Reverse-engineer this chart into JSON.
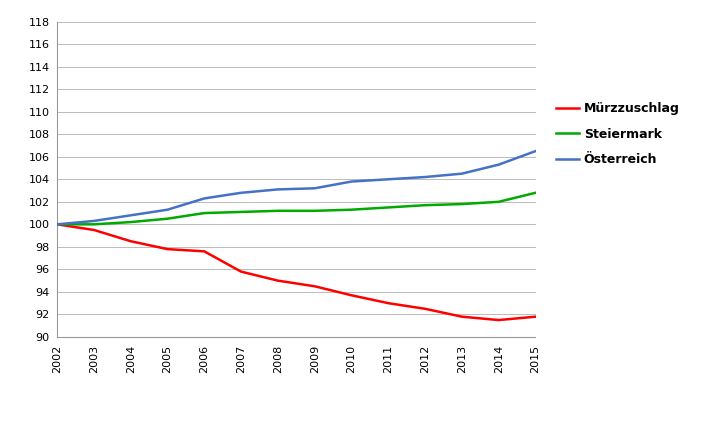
{
  "years": [
    2002,
    2003,
    2004,
    2005,
    2006,
    2007,
    2008,
    2009,
    2010,
    2011,
    2012,
    2013,
    2014,
    2015
  ],
  "murzzuschlag": [
    100.0,
    99.5,
    98.5,
    97.8,
    97.6,
    95.8,
    95.0,
    94.5,
    93.7,
    93.0,
    92.5,
    91.8,
    91.5,
    91.8
  ],
  "steiermark": [
    100.0,
    100.0,
    100.2,
    100.5,
    101.0,
    101.1,
    101.2,
    101.2,
    101.3,
    101.5,
    101.7,
    101.8,
    102.0,
    102.8
  ],
  "osterreich": [
    100.0,
    100.3,
    100.8,
    101.3,
    102.3,
    102.8,
    103.1,
    103.2,
    103.8,
    104.0,
    104.2,
    104.5,
    105.3,
    106.5
  ],
  "line_colors": {
    "murzzuschlag": "#FF0000",
    "steiermark": "#00AA00",
    "osterreich": "#4472C4"
  },
  "legend_labels": {
    "murzzuschlag": "Mürzzuschlag",
    "steiermark": "Steiermark",
    "osterreich": "Österreich"
  },
  "ylim": [
    90,
    118
  ],
  "yticks": [
    90,
    92,
    94,
    96,
    98,
    100,
    102,
    104,
    106,
    108,
    110,
    112,
    114,
    116,
    118
  ],
  "background_color": "#FFFFFF",
  "grid_color": "#BBBBBB",
  "line_width": 1.8,
  "tick_fontsize": 8,
  "legend_fontsize": 9
}
